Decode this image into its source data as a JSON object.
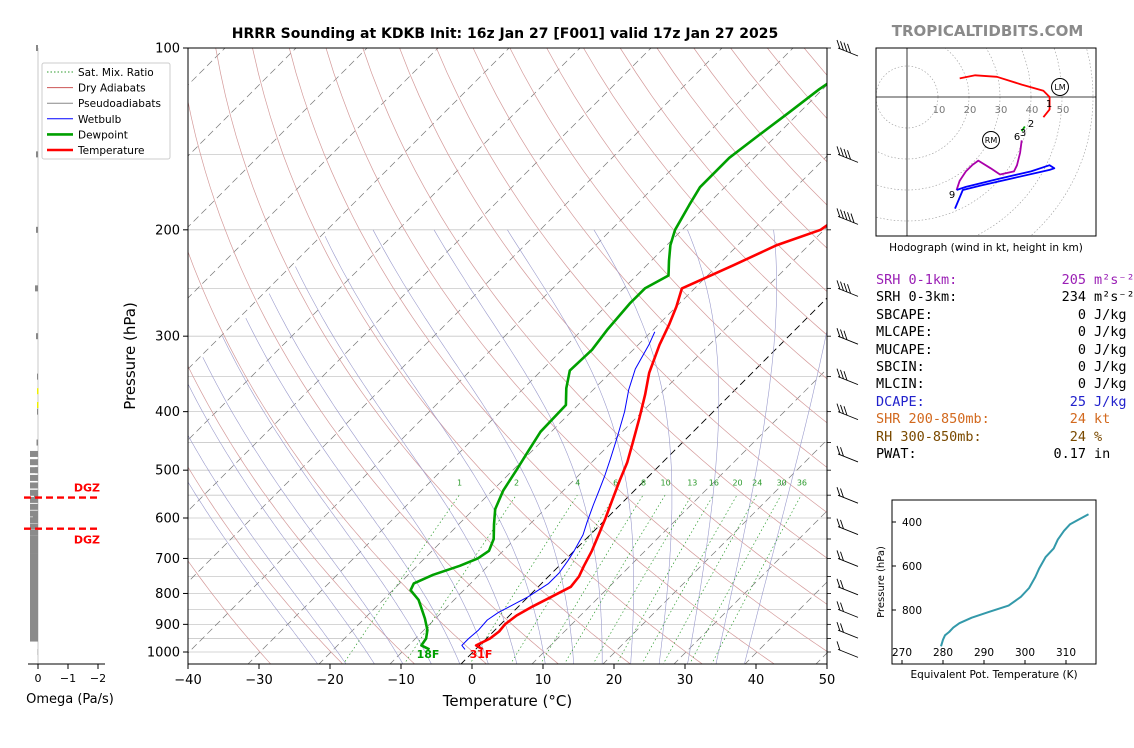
{
  "title": "HRRR Sounding at KDKB Init: 16z Jan 27 [F001] valid 17z Jan 27 2025",
  "brand": "TROPICALTIDBITS.COM",
  "chart_data": [
    {
      "type": "line",
      "name": "skew-t",
      "xlabel": "Temperature (°C)",
      "ylabel": "Pressure (hPa)",
      "xlim": [
        -40,
        50
      ],
      "ylim": [
        1050,
        100
      ],
      "y_scale": "log",
      "x_ticks": [
        "−40",
        "−30",
        "−20",
        "−10",
        "0",
        "10",
        "20",
        "30",
        "40",
        "50"
      ],
      "y_ticks": [
        "100",
        "200",
        "300",
        "400",
        "500",
        "600",
        "700",
        "800",
        "900",
        "1000"
      ],
      "legend_position": "top-left",
      "legend": [
        {
          "label": "Sat. Mix. Ratio",
          "color": "#2e9b2e",
          "style": "dotted"
        },
        {
          "label": "Dry Adiabats",
          "color": "#cc5555",
          "style": "solid"
        },
        {
          "label": "Pseudoadiabats",
          "color": "#888888",
          "style": "solid"
        },
        {
          "label": "Wetbulb",
          "color": "#0000ff",
          "style": "solid"
        },
        {
          "label": "Dewpoint",
          "color": "#00a000",
          "style": "bold"
        },
        {
          "label": "Temperature",
          "color": "#ff0000",
          "style": "bold"
        }
      ],
      "mix_ratio_labels": [
        "1",
        "2",
        "4",
        "6",
        "8",
        "10",
        "13",
        "16",
        "20",
        "24",
        "30",
        "36"
      ],
      "surface_labels": {
        "dewpoint": "18F",
        "temperature": "31F"
      },
      "series": [
        {
          "name": "Temperature",
          "color": "#ff0000",
          "points": [
            [
              1,
              990
            ],
            [
              -0.5,
              975
            ],
            [
              0.5,
              950
            ],
            [
              0.8,
              925
            ],
            [
              0.6,
              900
            ],
            [
              1,
              870
            ],
            [
              2,
              840
            ],
            [
              3.3,
              810
            ],
            [
              4.6,
              780
            ],
            [
              4.3,
              750
            ],
            [
              3.5,
              720
            ],
            [
              2.5,
              680
            ],
            [
              1.2,
              640
            ],
            [
              -0.2,
              600
            ],
            [
              -1.8,
              560
            ],
            [
              -3.5,
              520
            ],
            [
              -5,
              485
            ],
            [
              -7,
              450
            ],
            [
              -9.5,
              410
            ],
            [
              -12,
              375
            ],
            [
              -14.5,
              345
            ],
            [
              -17,
              310
            ],
            [
              -18.5,
              287
            ],
            [
              -20,
              268
            ],
            [
              -21.8,
              250
            ],
            [
              -17.8,
              229
            ],
            [
              -14.5,
              212
            ],
            [
              -10.5,
              200
            ],
            [
              -9,
              182
            ],
            [
              -8,
              168
            ],
            [
              -6.5,
              153
            ],
            [
              -4,
              140
            ],
            [
              -1.5,
              129
            ],
            [
              0,
              122
            ],
            [
              0,
              112
            ],
            [
              0,
              103
            ]
          ]
        },
        {
          "name": "Dewpoint",
          "color": "#00a000",
          "points": [
            [
              -6.5,
              990
            ],
            [
              -8.2,
              975
            ],
            [
              -8.5,
              950
            ],
            [
              -9.5,
              920
            ],
            [
              -11.5,
              880
            ],
            [
              -13.5,
              845
            ],
            [
              -15,
              820
            ],
            [
              -17.5,
              790
            ],
            [
              -18,
              770
            ],
            [
              -16.5,
              745
            ],
            [
              -14,
              720
            ],
            [
              -12.5,
              700
            ],
            [
              -12,
              680
            ],
            [
              -13,
              650
            ],
            [
              -15,
              615
            ],
            [
              -17,
              580
            ],
            [
              -18.5,
              540
            ],
            [
              -19.5,
              500
            ],
            [
              -20.5,
              465
            ],
            [
              -21.5,
              432
            ],
            [
              -21.7,
              390
            ],
            [
              -24,
              366
            ],
            [
              -26,
              342
            ],
            [
              -25.8,
              316
            ],
            [
              -26.5,
              292
            ],
            [
              -27,
              265
            ],
            [
              -27,
              250
            ],
            [
              -25.5,
              238
            ],
            [
              -27.5,
              225
            ],
            [
              -29.5,
              212
            ],
            [
              -31,
              200
            ],
            [
              -32.5,
              182
            ],
            [
              -33.5,
              170
            ],
            [
              -33.5,
              152
            ],
            [
              -32.5,
              139
            ],
            [
              -31.5,
              128
            ],
            [
              -30.5,
              117
            ],
            [
              -29,
              107
            ]
          ]
        },
        {
          "name": "Wetbulb",
          "color": "#0000ff",
          "points": [
            [
              -1.5,
              990
            ],
            [
              -2.5,
              975
            ],
            [
              -2.5,
              950
            ],
            [
              -2.3,
              920
            ],
            [
              -2.5,
              885
            ],
            [
              -2,
              860
            ],
            [
              -1,
              835
            ],
            [
              0,
              810
            ],
            [
              1,
              770
            ],
            [
              1,
              740
            ],
            [
              0.5,
              705
            ],
            [
              0,
              680
            ],
            [
              -1,
              640
            ],
            [
              -2.2,
              610
            ],
            [
              -3.8,
              570
            ],
            [
              -5,
              540
            ],
            [
              -6.3,
              510
            ],
            [
              -7.8,
              480
            ],
            [
              -10,
              440
            ],
            [
              -12.5,
              400
            ],
            [
              -15,
              368
            ],
            [
              -17,
              340
            ],
            [
              -18.5,
              310
            ],
            [
              -19.5,
              295
            ]
          ]
        }
      ]
    },
    {
      "type": "line",
      "name": "omega",
      "xlabel": "Omega (Pa/s)",
      "x_ticks": [
        "0",
        "−1",
        "−2"
      ],
      "dgz_labels": [
        "DGZ",
        "DGZ"
      ],
      "dgz_pressures": [
        555,
        625
      ]
    },
    {
      "type": "line",
      "name": "hodograph",
      "caption": "Hodograph (wind in kt, height in km)",
      "ring_labels": [
        "10",
        "20",
        "30",
        "40",
        "50"
      ],
      "markers": [
        "LM",
        "RM"
      ],
      "height_labels": [
        "1",
        "2",
        "3",
        "6",
        "9"
      ],
      "segments": [
        {
          "color": "#ff0000",
          "points": [
            [
              17,
              -6
            ],
            [
              22,
              -7
            ],
            [
              29,
              -6.5
            ],
            [
              37,
              -4
            ],
            [
              44,
              -2
            ],
            [
              46,
              0
            ],
            [
              46,
              4
            ],
            [
              44,
              6.5
            ]
          ]
        },
        {
          "color": "#00a000",
          "points": [
            [
              37,
              11
            ],
            [
              38,
              9.5
            ]
          ]
        },
        {
          "color": "#aa00aa",
          "points": [
            [
              37,
              14
            ],
            [
              36.5,
              18
            ],
            [
              35.5,
              22
            ],
            [
              34.5,
              24
            ],
            [
              30,
              25
            ],
            [
              27,
              23
            ],
            [
              23,
              20.5
            ],
            [
              21,
              22
            ],
            [
              19,
              24
            ],
            [
              17,
              27
            ],
            [
              16,
              30
            ]
          ]
        },
        {
          "color": "#0000ff",
          "points": [
            [
              16,
              30
            ],
            [
              19,
              29
            ],
            [
              29,
              26.5
            ],
            [
              40,
              24
            ],
            [
              46,
              22
            ],
            [
              47.5,
              23
            ],
            [
              46,
              23.5
            ],
            [
              35,
              26
            ],
            [
              24,
              28.5
            ],
            [
              18,
              30
            ],
            [
              15.5,
              36
            ]
          ]
        }
      ]
    },
    {
      "type": "line",
      "name": "theta-e",
      "xlabel": "Equivalent Pot. Temperature (K)",
      "ylabel": "Pressure (hPa)",
      "x_ticks": [
        "270",
        "280",
        "290",
        "300",
        "310"
      ],
      "y_ticks": [
        "400",
        "600",
        "800"
      ],
      "series": [
        {
          "name": "theta-e",
          "color": "#3399aa",
          "points": [
            [
              279.5,
              965
            ],
            [
              280,
              935
            ],
            [
              280.5,
              915
            ],
            [
              281.5,
              900
            ],
            [
              282.5,
              880
            ],
            [
              284,
              860
            ],
            [
              287,
              835
            ],
            [
              291,
              810
            ],
            [
              296,
              780
            ],
            [
              299,
              740
            ],
            [
              301,
              700
            ],
            [
              302.5,
              650
            ],
            [
              303.5,
              610
            ],
            [
              305,
              560
            ],
            [
              307,
              520
            ],
            [
              308,
              480
            ],
            [
              309.5,
              440
            ],
            [
              311,
              410
            ],
            [
              313,
              390
            ],
            [
              315.5,
              365
            ]
          ]
        }
      ]
    }
  ],
  "params": [
    {
      "label": "SRH 0-1km:",
      "value": "205",
      "unit": "m²s⁻²",
      "color": "#9a1fb5"
    },
    {
      "label": "SRH 0-3km:",
      "value": "234",
      "unit": "m²s⁻²",
      "color": "#000000"
    },
    {
      "label": "SBCAPE:",
      "value": "0",
      "unit": "J/kg",
      "color": "#000000"
    },
    {
      "label": "MLCAPE:",
      "value": "0",
      "unit": "J/kg",
      "color": "#000000"
    },
    {
      "label": "MUCAPE:",
      "value": "0",
      "unit": "J/kg",
      "color": "#000000"
    },
    {
      "label": "SBCIN:",
      "value": "0",
      "unit": "J/kg",
      "color": "#000000"
    },
    {
      "label": "MLCIN:",
      "value": "0",
      "unit": "J/kg",
      "color": "#000000"
    },
    {
      "label": "DCAPE:",
      "value": "25",
      "unit": "J/kg",
      "color": "#2222cc"
    },
    {
      "label": "SHR 200-850mb:",
      "value": "24",
      "unit": "kt",
      "color": "#d2691e"
    },
    {
      "label": "RH 300-850mb:",
      "value": "24",
      "unit": "%",
      "color": "#7a4a00"
    },
    {
      "label": "PWAT:",
      "value": "0.17",
      "unit": "in",
      "color": "#000000"
    }
  ]
}
